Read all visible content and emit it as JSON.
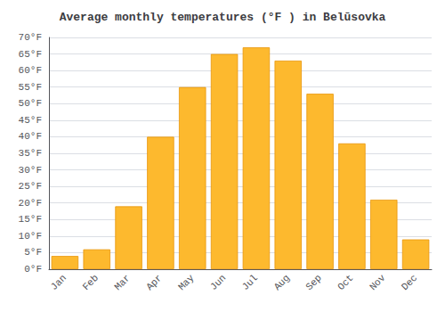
{
  "chart_data": {
    "type": "bar",
    "title": "Average monthly temperatures (°F ) in Belūsovka",
    "categories": [
      "Jan",
      "Feb",
      "Mar",
      "Apr",
      "May",
      "Jun",
      "Jul",
      "Aug",
      "Sep",
      "Oct",
      "Nov",
      "Dec"
    ],
    "values": [
      4,
      6,
      19,
      40,
      55,
      65,
      67,
      63,
      53,
      38,
      21,
      9
    ],
    "color": "#FDB92E",
    "ylim": [
      0,
      70
    ],
    "yticks": [
      {
        "value": 0,
        "label": "0°F"
      },
      {
        "value": 5,
        "label": "5°F"
      },
      {
        "value": 10,
        "label": "10°F"
      },
      {
        "value": 15,
        "label": "15°F"
      },
      {
        "value": 20,
        "label": "20°F"
      },
      {
        "value": 25,
        "label": "25°F"
      },
      {
        "value": 30,
        "label": "30°F"
      },
      {
        "value": 35,
        "label": "35°F"
      },
      {
        "value": 40,
        "label": "40°F"
      },
      {
        "value": 45,
        "label": "45°F"
      },
      {
        "value": 50,
        "label": "50°F"
      },
      {
        "value": 55,
        "label": "55°F"
      },
      {
        "value": 60,
        "label": "60°F"
      },
      {
        "value": 65,
        "label": "65°F"
      },
      {
        "value": 70,
        "label": "70°F"
      }
    ],
    "grid": true
  }
}
